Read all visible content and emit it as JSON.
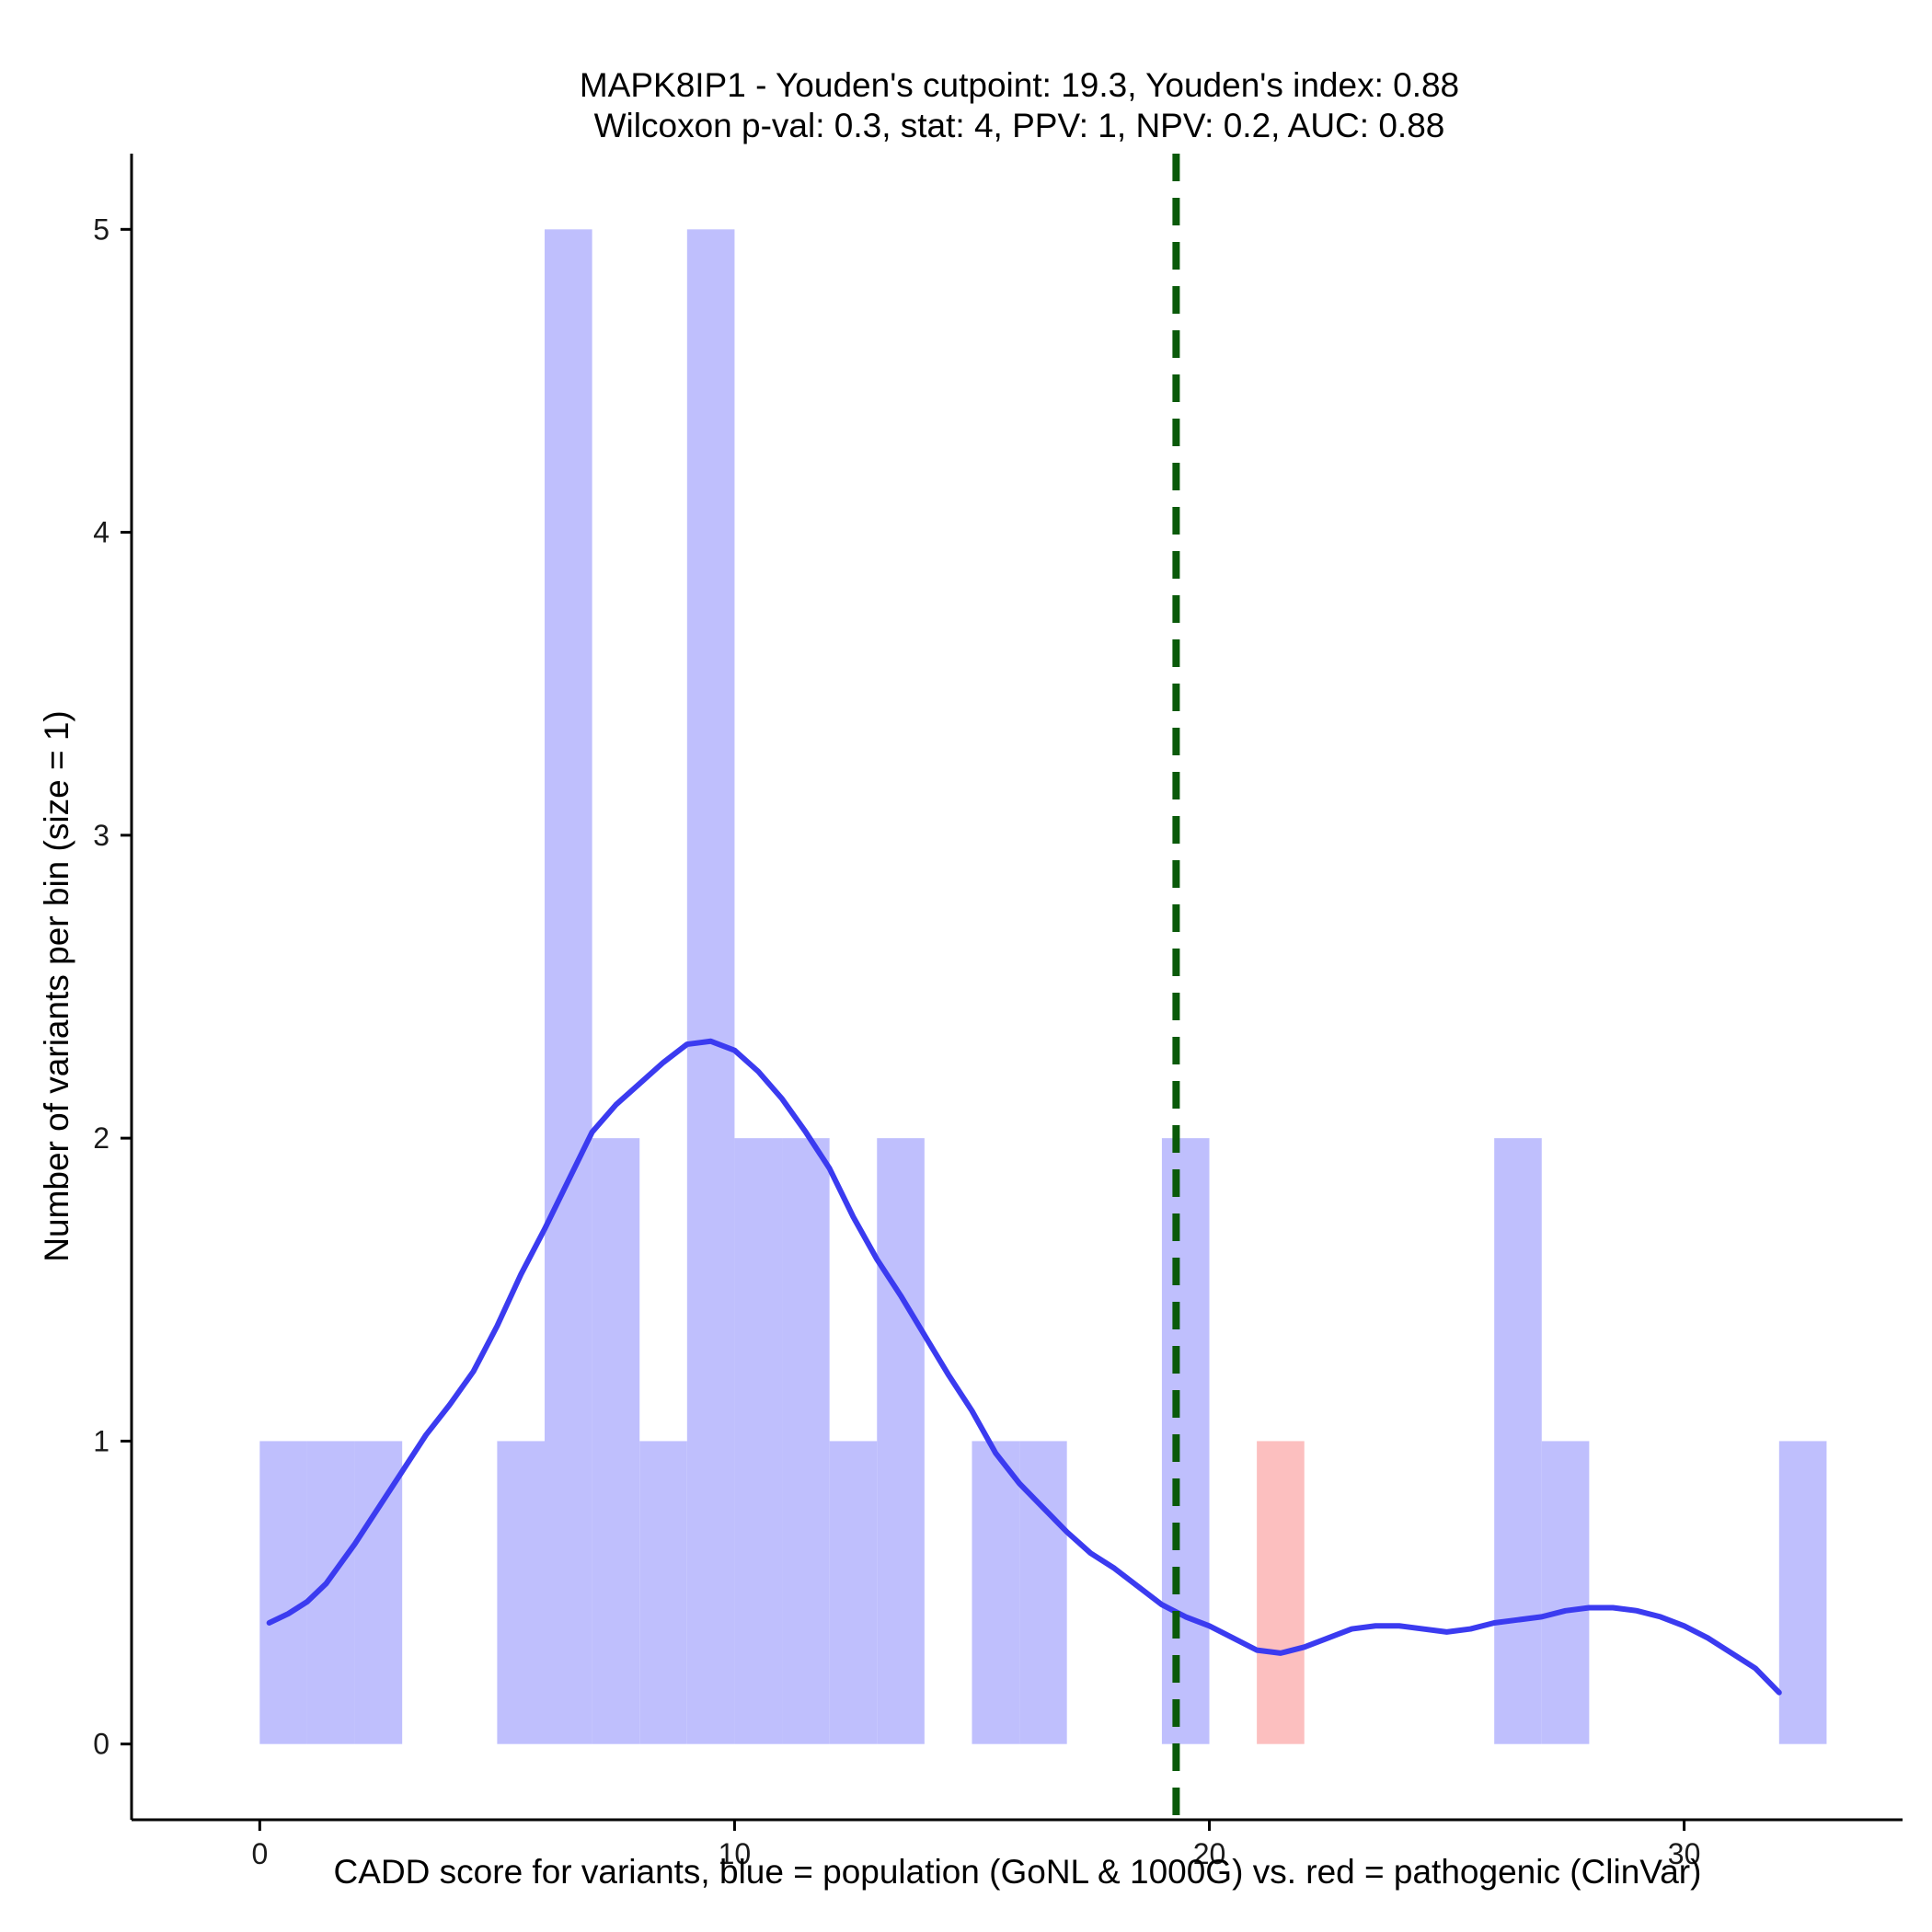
{
  "chart_data": {
    "type": "histogram",
    "title_line1": "MAPK8IP1 - Youden's cutpoint: 19.3, Youden's index: 0.88",
    "title_line2": "Wilcoxon p-val: 0.3, stat: 4, PPV: 1, NPV: 0.2, AUC: 0.88",
    "xlabel": "CADD score for variants, blue = population (GoNL & 1000G) vs. red = pathogenic (ClinVar)",
    "ylabel": "Number of variants per bin (size = 1)",
    "xlim": [
      -2.7,
      34.6
    ],
    "ylim": [
      -0.25,
      5.25
    ],
    "x_ticks": [
      0,
      10,
      20,
      30
    ],
    "y_ticks": [
      0,
      1,
      2,
      3,
      4,
      5
    ],
    "bin_size": 1,
    "cutpoint": 19.3,
    "colors": {
      "population": "#bfbffd",
      "pathogenic": "#fcbfbf",
      "density": "#3b3bf0",
      "cutpoint": "#0a5a0a"
    },
    "series": [
      {
        "name": "population",
        "bins": [
          {
            "start": 0,
            "end": 1,
            "count": 1
          },
          {
            "start": 1,
            "end": 2,
            "count": 1
          },
          {
            "start": 2,
            "end": 3,
            "count": 1
          },
          {
            "start": 5,
            "end": 6,
            "count": 1
          },
          {
            "start": 6,
            "end": 7,
            "count": 5
          },
          {
            "start": 7,
            "end": 8,
            "count": 2
          },
          {
            "start": 8,
            "end": 9,
            "count": 1
          },
          {
            "start": 9,
            "end": 10,
            "count": 5
          },
          {
            "start": 10,
            "end": 11,
            "count": 2
          },
          {
            "start": 11,
            "end": 12,
            "count": 2
          },
          {
            "start": 12,
            "end": 13,
            "count": 1
          },
          {
            "start": 13,
            "end": 14,
            "count": 2
          },
          {
            "start": 15,
            "end": 16,
            "count": 1
          },
          {
            "start": 16,
            "end": 17,
            "count": 1
          },
          {
            "start": 19,
            "end": 20,
            "count": 2
          },
          {
            "start": 26,
            "end": 27,
            "count": 2
          },
          {
            "start": 27,
            "end": 28,
            "count": 1
          },
          {
            "start": 32,
            "end": 33,
            "count": 1
          }
        ]
      },
      {
        "name": "pathogenic",
        "bins": [
          {
            "start": 21,
            "end": 22,
            "count": 1
          }
        ]
      }
    ],
    "density_curve": {
      "name": "population density",
      "x": [
        0.2,
        0.6,
        1.0,
        1.4,
        2.0,
        2.5,
        3.0,
        3.5,
        4.0,
        4.5,
        5.0,
        5.5,
        6.0,
        6.5,
        7.0,
        7.5,
        8.0,
        8.5,
        9.0,
        9.5,
        10.0,
        10.5,
        11.0,
        11.5,
        12.0,
        12.5,
        13.0,
        13.5,
        14.0,
        14.5,
        15.0,
        15.5,
        16.0,
        16.5,
        17.0,
        17.5,
        18.0,
        18.5,
        19.0,
        19.5,
        20.0,
        20.5,
        21.0,
        21.5,
        22.0,
        22.5,
        23.0,
        23.5,
        24.0,
        24.5,
        25.0,
        25.5,
        26.0,
        26.5,
        27.0,
        27.5,
        28.0,
        28.5,
        29.0,
        29.5,
        30.0,
        30.5,
        31.0,
        31.5,
        32.0
      ],
      "y": [
        0.4,
        0.43,
        0.47,
        0.53,
        0.66,
        0.78,
        0.9,
        1.02,
        1.12,
        1.23,
        1.38,
        1.55,
        1.7,
        1.86,
        2.02,
        2.11,
        2.18,
        2.25,
        2.31,
        2.32,
        2.29,
        2.22,
        2.13,
        2.02,
        1.9,
        1.74,
        1.6,
        1.48,
        1.35,
        1.22,
        1.1,
        0.96,
        0.86,
        0.78,
        0.7,
        0.63,
        0.58,
        0.52,
        0.46,
        0.42,
        0.39,
        0.35,
        0.31,
        0.3,
        0.32,
        0.35,
        0.38,
        0.39,
        0.39,
        0.38,
        0.37,
        0.38,
        0.4,
        0.41,
        0.42,
        0.44,
        0.45,
        0.45,
        0.44,
        0.42,
        0.39,
        0.35,
        0.3,
        0.25,
        0.17
      ]
    }
  }
}
